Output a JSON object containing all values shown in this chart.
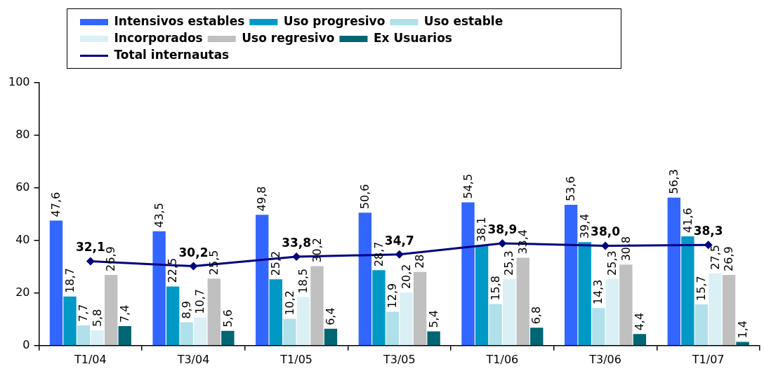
{
  "chart_data": {
    "type": "bar",
    "categories": [
      "T1/04",
      "T3/04",
      "T1/05",
      "T3/05",
      "T1/06",
      "T3/06",
      "T1/07"
    ],
    "series": [
      {
        "name": "Intensivos estables",
        "color": "#3366ff",
        "values": [
          47.6,
          43.5,
          49.8,
          50.6,
          54.5,
          53.6,
          56.3
        ],
        "value_labels": [
          "47,6",
          "43,5",
          "49,8",
          "50,6",
          "54,5",
          "53,6",
          "56,3"
        ]
      },
      {
        "name": "Uso progresivo",
        "color": "#0099c6",
        "values": [
          18.7,
          22.5,
          25.2,
          28.7,
          38.1,
          39.4,
          41.6
        ],
        "value_labels": [
          "18,7",
          "22,5",
          "25,2",
          "28,7",
          "38,1",
          "39,4",
          "41,6"
        ]
      },
      {
        "name": "Uso estable",
        "color": "#b0e0ea",
        "values": [
          7.7,
          8.9,
          10.2,
          12.9,
          15.8,
          14.3,
          15.7
        ],
        "value_labels": [
          "7,7",
          "8,9",
          "10,2",
          "12,9",
          "15,8",
          "14,3",
          "15,7"
        ]
      },
      {
        "name": "Incorporados",
        "color": "#daf0f5",
        "values": [
          5.8,
          10.7,
          18.5,
          20.2,
          25.3,
          25.3,
          27.5
        ],
        "value_labels": [
          "5,8",
          "10,7",
          "18,5",
          "20,2",
          "25,3",
          "25,3",
          "27,5"
        ]
      },
      {
        "name": "Uso regresivo",
        "color": "#c0c0c0",
        "values": [
          26.9,
          25.5,
          30.2,
          28,
          33.4,
          30.8,
          26.9
        ],
        "value_labels": [
          "26,9",
          "25,5",
          "30,2",
          "28",
          "33,4",
          "30,8",
          "26,9"
        ]
      },
      {
        "name": "Ex Usuarios",
        "color": "#006674",
        "values": [
          7.4,
          5.6,
          6.4,
          5.4,
          6.8,
          4.4,
          1.4
        ],
        "value_labels": [
          "7,4",
          "5,6",
          "6,4",
          "5,4",
          "6,8",
          "4,4",
          "1,4"
        ]
      },
      {
        "name": "Total internautas",
        "type": "line",
        "marker": "diamond",
        "color": "#000080",
        "values": [
          32.1,
          30.2,
          33.8,
          34.7,
          38.9,
          38.0,
          38.3
        ],
        "value_labels": [
          "32,1",
          "30,2",
          "33,8",
          "34,7",
          "38,9",
          "38,0",
          "38,3"
        ]
      }
    ],
    "ylim": [
      0,
      100
    ],
    "yticks": [
      0,
      20,
      40,
      60,
      80,
      100
    ],
    "grid": false,
    "legend": "top"
  }
}
